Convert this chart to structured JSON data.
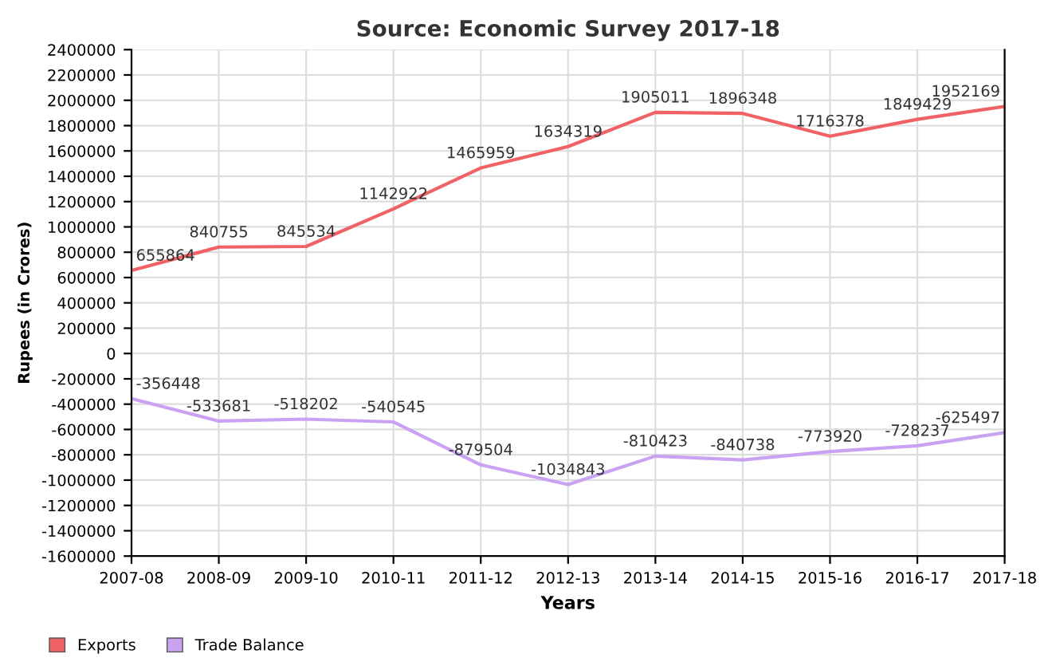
{
  "chart_data": {
    "type": "line",
    "title": "Source: Economic Survey 2017-18",
    "xlabel": "Years",
    "ylabel": "Rupees (in Crores)",
    "categories": [
      "2007-08",
      "2008-09",
      "2009-10",
      "2010-11",
      "2011-12",
      "2012-13",
      "2013-14",
      "2014-15",
      "2015-16",
      "2016-17",
      "2017-18"
    ],
    "series": [
      {
        "name": "Exports",
        "color": "#f06266",
        "values": [
          655864,
          840755,
          845534,
          1142922,
          1465959,
          1634319,
          1905011,
          1896348,
          1716378,
          1849429,
          1952169
        ]
      },
      {
        "name": "Trade Balance",
        "color": "#c9a3f2",
        "values": [
          -356448,
          -533681,
          -518202,
          -540545,
          -879504,
          -1034843,
          -810423,
          -840738,
          -773920,
          -728237,
          -625497
        ]
      }
    ],
    "ylim": [
      -1600000,
      2400000
    ],
    "yticks": [
      -1600000,
      -1400000,
      -1200000,
      -1000000,
      -800000,
      -600000,
      -400000,
      -200000,
      0,
      200000,
      400000,
      600000,
      800000,
      1000000,
      1200000,
      1400000,
      1600000,
      1800000,
      2000000,
      2200000,
      2400000
    ],
    "grid": true,
    "legend": "bottom left",
    "data_labels": true,
    "marker": "none",
    "line_style": "solid"
  }
}
